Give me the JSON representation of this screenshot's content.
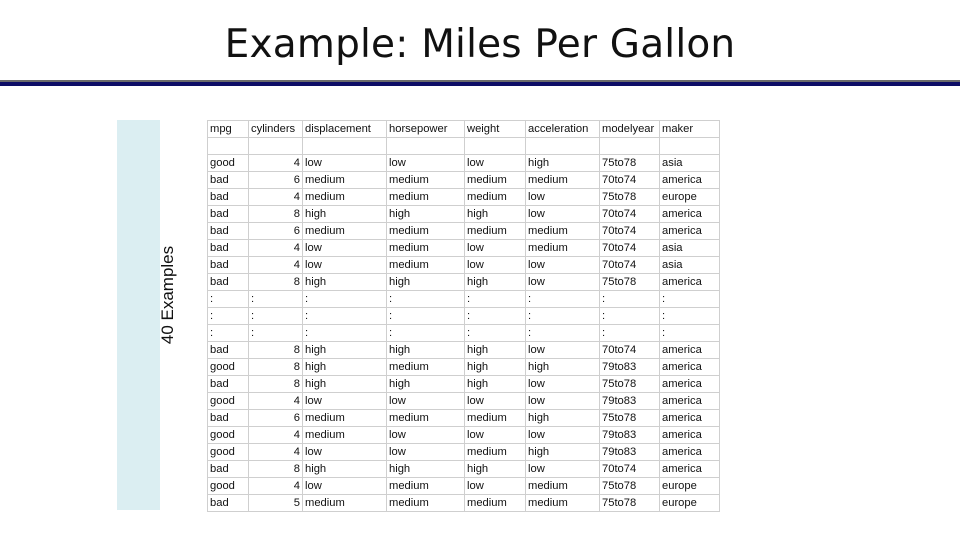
{
  "title": "Example: Miles Per Gallon",
  "side_label": "40 Examples",
  "table": {
    "headers": [
      "mpg",
      "cylinders",
      "displacement",
      "horsepower",
      "weight",
      "acceleration",
      "modelyear",
      "maker"
    ],
    "rows": [
      [
        "",
        "",
        "",
        "",
        "",
        "",
        "",
        ""
      ],
      [
        "good",
        "4",
        "low",
        "low",
        "low",
        "high",
        "75to78",
        "asia"
      ],
      [
        "bad",
        "6",
        "medium",
        "medium",
        "medium",
        "medium",
        "70to74",
        "america"
      ],
      [
        "bad",
        "4",
        "medium",
        "medium",
        "medium",
        "low",
        "75to78",
        "europe"
      ],
      [
        "bad",
        "8",
        "high",
        "high",
        "high",
        "low",
        "70to74",
        "america"
      ],
      [
        "bad",
        "6",
        "medium",
        "medium",
        "medium",
        "medium",
        "70to74",
        "america"
      ],
      [
        "bad",
        "4",
        "low",
        "medium",
        "low",
        "medium",
        "70to74",
        "asia"
      ],
      [
        "bad",
        "4",
        "low",
        "medium",
        "low",
        "low",
        "70to74",
        "asia"
      ],
      [
        "bad",
        "8",
        "high",
        "high",
        "high",
        "low",
        "75to78",
        "america"
      ],
      [
        ":",
        ":",
        ":",
        ":",
        ":",
        ":",
        ":",
        ":"
      ],
      [
        ":",
        ":",
        ":",
        ":",
        ":",
        ":",
        ":",
        ":"
      ],
      [
        ":",
        ":",
        ":",
        ":",
        ":",
        ":",
        ":",
        ":"
      ],
      [
        "bad",
        "8",
        "high",
        "high",
        "high",
        "low",
        "70to74",
        "america"
      ],
      [
        "good",
        "8",
        "high",
        "medium",
        "high",
        "high",
        "79to83",
        "america"
      ],
      [
        "bad",
        "8",
        "high",
        "high",
        "high",
        "low",
        "75to78",
        "america"
      ],
      [
        "good",
        "4",
        "low",
        "low",
        "low",
        "low",
        "79to83",
        "america"
      ],
      [
        "bad",
        "6",
        "medium",
        "medium",
        "medium",
        "high",
        "75to78",
        "america"
      ],
      [
        "good",
        "4",
        "medium",
        "low",
        "low",
        "low",
        "79to83",
        "america"
      ],
      [
        "good",
        "4",
        "low",
        "low",
        "medium",
        "high",
        "79to83",
        "america"
      ],
      [
        "bad",
        "8",
        "high",
        "high",
        "high",
        "low",
        "70to74",
        "america"
      ],
      [
        "good",
        "4",
        "low",
        "medium",
        "low",
        "medium",
        "75to78",
        "europe"
      ],
      [
        "bad",
        "5",
        "medium",
        "medium",
        "medium",
        "medium",
        "75to78",
        "europe"
      ]
    ]
  }
}
